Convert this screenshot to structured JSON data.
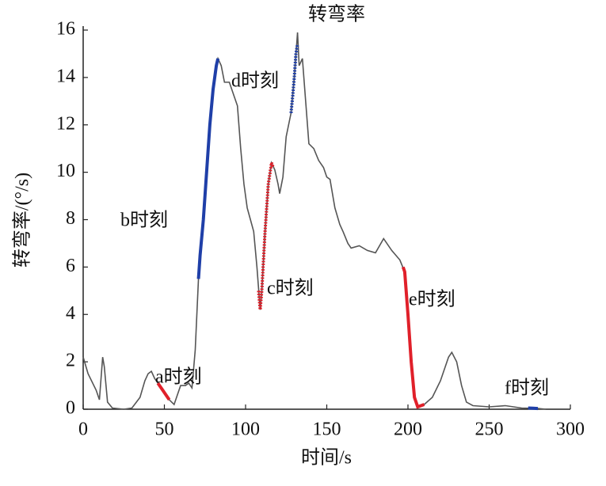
{
  "chart_data": {
    "type": "line",
    "title": "转弯率",
    "xlabel": "时间/s",
    "ylabel": "转弯率/(°/s)",
    "xlim": [
      0,
      300
    ],
    "xticks": [
      0,
      50,
      100,
      150,
      200,
      250,
      300
    ],
    "ylim": [
      0,
      16
    ],
    "yticks": [
      0,
      2,
      4,
      6,
      8,
      10,
      12,
      14,
      16
    ],
    "series": [
      {
        "color": "#555555",
        "dash": false,
        "x": [
          0,
          3,
          8,
          10,
          12,
          13,
          15,
          18,
          25,
          30,
          35,
          38,
          40,
          42,
          44,
          46,
          48,
          50,
          53,
          56,
          58,
          60,
          63,
          65,
          67,
          69,
          71,
          72,
          74,
          76,
          78,
          80,
          82,
          83,
          85,
          87,
          90,
          93,
          95,
          97,
          99,
          101,
          103,
          105,
          107,
          109,
          110,
          112,
          114,
          116,
          118,
          120,
          121,
          123,
          125,
          128,
          130,
          132,
          133,
          135,
          137,
          139,
          142,
          145,
          148,
          150,
          152,
          155,
          158,
          160,
          163,
          165,
          170,
          175,
          180,
          185,
          190,
          195,
          198,
          200,
          202,
          204,
          206,
          210,
          215,
          220,
          225,
          227,
          230,
          233,
          236,
          240,
          250,
          260,
          270,
          280,
          285
        ],
        "values": [
          2.2,
          1.5,
          0.8,
          0.4,
          2.2,
          1.8,
          0.3,
          0.05,
          0,
          0.05,
          0.5,
          1.2,
          1.5,
          1.6,
          1.3,
          1.1,
          0.9,
          0.7,
          0.4,
          0.2,
          0.6,
          1.0,
          1.0,
          1.1,
          0.9,
          2.5,
          5.5,
          6.5,
          8,
          10,
          12,
          13.5,
          14.5,
          14.8,
          14.5,
          13.8,
          13.8,
          13.2,
          12.8,
          11,
          9.5,
          8.5,
          8,
          7.5,
          6,
          4.2,
          5,
          7.5,
          9.5,
          10.4,
          10.1,
          9.5,
          9.1,
          9.8,
          11.5,
          12.5,
          14,
          15.9,
          14.5,
          14.8,
          13,
          11.2,
          11,
          10.5,
          10.2,
          9.8,
          9.7,
          8.5,
          7.8,
          7.5,
          7,
          6.8,
          6.9,
          6.7,
          6.6,
          7.2,
          6.7,
          6.3,
          5.8,
          4,
          2,
          0.5,
          0.1,
          0.2,
          0.5,
          1.2,
          2.2,
          2.4,
          2,
          1.0,
          0.3,
          0.15,
          0.1,
          0.15,
          0.05,
          0.03,
          0
        ]
      },
      {
        "color": "#e0202a",
        "dash": false,
        "x": [
          46,
          48,
          50,
          53
        ],
        "values": [
          1.1,
          0.9,
          0.7,
          0.4
        ]
      },
      {
        "color": "#1f3fa8",
        "dash": false,
        "x": [
          71,
          72,
          74,
          76,
          78,
          80,
          82,
          83
        ],
        "values": [
          5.5,
          6.5,
          8,
          10,
          12,
          13.5,
          14.5,
          14.8
        ]
      },
      {
        "color": "#e0202a",
        "dash": true,
        "x": [
          108,
          109,
          110,
          112,
          114,
          116,
          117
        ],
        "values": [
          5,
          4.2,
          5,
          7.5,
          9.5,
          10.4,
          10.2
        ]
      },
      {
        "color": "#1f3fa8",
        "dash": true,
        "x": [
          128,
          129,
          130,
          131,
          132
        ],
        "values": [
          12.5,
          13.2,
          14,
          15,
          15.4
        ]
      },
      {
        "color": "#e0202a",
        "dash": false,
        "x": [
          197,
          198,
          200,
          202,
          204,
          206,
          210
        ],
        "values": [
          6,
          5.8,
          4,
          2,
          0.5,
          0.1,
          0.2
        ]
      },
      {
        "color": "#1f3fa8",
        "dash": false,
        "x": [
          274,
          277,
          280
        ],
        "values": [
          0.05,
          0.04,
          0.03
        ]
      }
    ],
    "annotations": [
      "a时刻",
      "b时刻",
      "c时刻",
      "d时刻",
      "e时刻",
      "f时刻"
    ]
  }
}
